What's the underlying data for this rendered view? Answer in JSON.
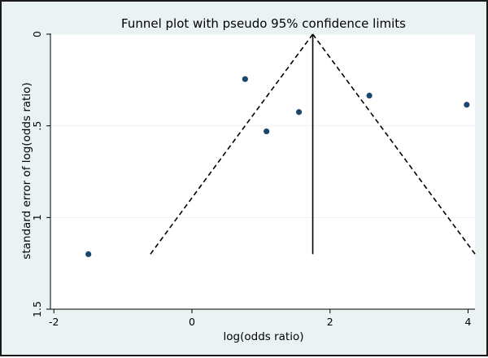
{
  "chart_data": {
    "type": "scatter",
    "title": "Funnel plot with pseudo 95% confidence limits",
    "xlabel": "log(odds ratio)",
    "ylabel": "standard error of log(odds ratio)",
    "xlim": [
      -2.05,
      4.1
    ],
    "ylim": [
      0,
      1.5
    ],
    "y_reversed": true,
    "grid": true,
    "x_ticks": [
      -2,
      0,
      2,
      4
    ],
    "y_ticks": [
      0,
      0.5,
      1,
      1.5
    ],
    "y_tick_labels": [
      "0",
      ".5",
      "1",
      "1.5"
    ],
    "pooled_estimate": 1.75,
    "se_max": 1.2,
    "points": [
      {
        "x": -1.5,
        "y": 1.2
      },
      {
        "x": 0.77,
        "y": 0.245
      },
      {
        "x": 1.08,
        "y": 0.53
      },
      {
        "x": 1.55,
        "y": 0.425
      },
      {
        "x": 2.57,
        "y": 0.335
      },
      {
        "x": 3.98,
        "y": 0.385
      }
    ],
    "colors": {
      "background": "#eaf2f3",
      "plot_region": "#ffffff",
      "marker": "#1a476f",
      "line": "#000000",
      "grid": "#eaf2f3"
    }
  }
}
